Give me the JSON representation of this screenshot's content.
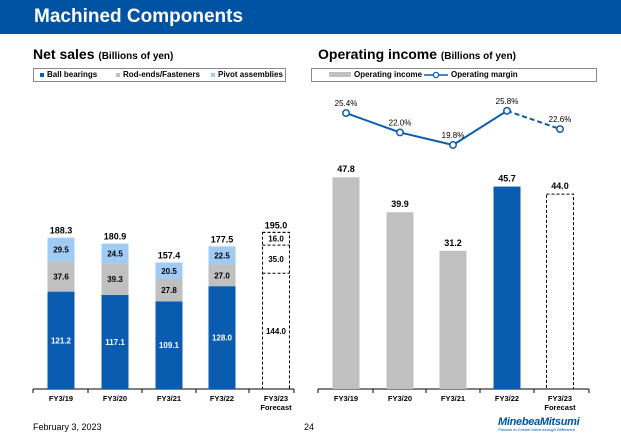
{
  "page": {
    "title": "Machined Components",
    "date": "February 3, 2023",
    "page_number": "24",
    "logo_name": "MinebeaMitsumi",
    "logo_tagline": "Passion to Create Value through Difference"
  },
  "colors": {
    "title_bar": "#0052a3",
    "ball_bearings": "#0a5cb0",
    "rod_ends": "#c0c0c0",
    "pivot": "#9fcbf5",
    "operating_income": "#c0c0c0",
    "operating_income_highlight": "#0a5cb0",
    "margin_line": "#0a5cb0"
  },
  "chart_data": [
    {
      "type": "bar",
      "stacked": true,
      "title": "Net sales",
      "unit_label": "(Billions of yen)",
      "categories": [
        "FY3/19",
        "FY3/20",
        "FY3/21",
        "FY3/22",
        "FY3/23\nForecast"
      ],
      "series": [
        {
          "name": "Ball bearings",
          "values": [
            121.2,
            117.1,
            109.1,
            128.0,
            144.0
          ]
        },
        {
          "name": "Rod-ends/Fasteners",
          "values": [
            37.6,
            39.3,
            27.8,
            27.0,
            35.0
          ]
        },
        {
          "name": "Pivot assemblies",
          "values": [
            29.5,
            24.5,
            20.5,
            22.5,
            16.0
          ]
        }
      ],
      "totals": [
        188.3,
        180.9,
        157.4,
        177.5,
        195.0
      ],
      "forecast_index": 4,
      "ylim": [
        0,
        200
      ],
      "legend_position": "top"
    },
    {
      "type": "bar",
      "title": "Operating income",
      "unit_label": "(Billions of yen)",
      "categories": [
        "FY3/19",
        "FY3/20",
        "FY3/21",
        "FY3/22",
        "FY3/23\nForecast"
      ],
      "series": [
        {
          "name": "Operating income",
          "values": [
            47.8,
            39.9,
            31.2,
            45.7,
            44.0
          ]
        }
      ],
      "highlight_index": 3,
      "forecast_index": 4,
      "ylim": [
        0,
        60
      ],
      "line_series": {
        "name": "Operating margin",
        "values": [
          25.4,
          22.0,
          19.8,
          25.8,
          22.6
        ],
        "labels": [
          "25.4%",
          "22.0%",
          "19.8%",
          "25.8%",
          "22.6%"
        ],
        "ylim": [
          14,
          30
        ]
      },
      "legend_position": "top"
    }
  ]
}
